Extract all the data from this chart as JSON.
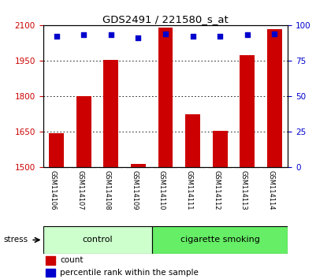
{
  "title": "GDS2491 / 221580_s_at",
  "samples": [
    "GSM114106",
    "GSM114107",
    "GSM114108",
    "GSM114109",
    "GSM114110",
    "GSM114111",
    "GSM114112",
    "GSM114113",
    "GSM114114"
  ],
  "counts": [
    1645,
    1800,
    1952,
    1515,
    2090,
    1725,
    1653,
    1972,
    2082
  ],
  "percentile_ranks": [
    92,
    93,
    93,
    91,
    94,
    92,
    92,
    93,
    94
  ],
  "groups": [
    "control",
    "control",
    "control",
    "control",
    "cigarette smoking",
    "cigarette smoking",
    "cigarette smoking",
    "cigarette smoking",
    "cigarette smoking"
  ],
  "group_labels": [
    "control",
    "cigarette smoking"
  ],
  "control_color": "#ccffcc",
  "smoking_color": "#66ee66",
  "bar_color": "#cc0000",
  "dot_color": "#0000cc",
  "ylim_left": [
    1500,
    2100
  ],
  "ylim_right": [
    0,
    100
  ],
  "yticks_left": [
    1500,
    1650,
    1800,
    1950,
    2100
  ],
  "yticks_right": [
    0,
    25,
    50,
    75,
    100
  ],
  "tick_label_color_left": "#cc0000",
  "tick_label_color_right": "#0000cc",
  "grid_color": "#000000",
  "background_color": "#ffffff",
  "sample_box_color": "#cccccc",
  "legend_count_label": "count",
  "legend_pct_label": "percentile rank within the sample",
  "stress_label": "stress",
  "bar_width": 0.55,
  "figsize": [
    4.2,
    3.54
  ],
  "dpi": 100
}
